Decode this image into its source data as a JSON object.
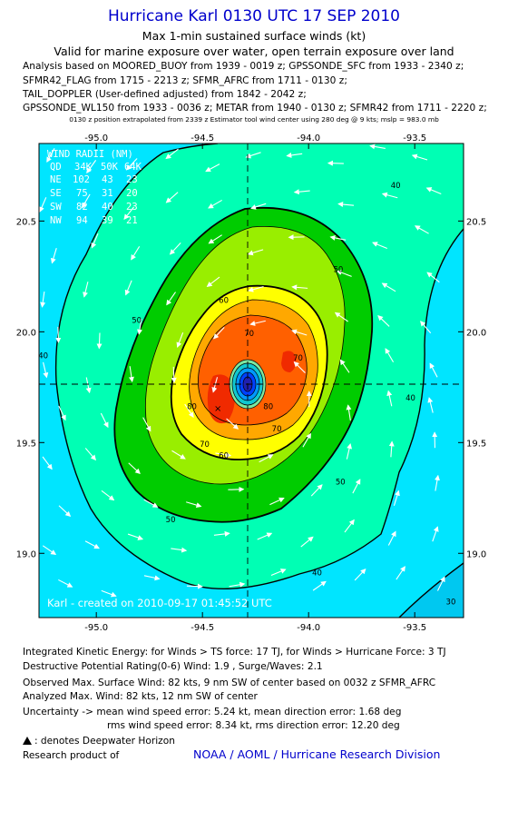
{
  "header": {
    "title": "Hurricane Karl 0130 UTC 17 SEP 2010",
    "subtitle": "Max 1-min sustained surface winds (kt)",
    "valid": "Valid for marine exposure over water, open terrain exposure over land"
  },
  "analysis_lines": [
    "Analysis based on MOORED_BUOY from 1939 - 0019 z; GPSSONDE_SFC from 1933 - 2340 z;",
    "SFMR42_FLAG from 1715 - 2213 z; SFMR_AFRC from 1711 - 0130 z;",
    "TAIL_DOPPLER (User-defined adjusted) from 1842 - 2042 z;",
    "GPSSONDE_WL150 from 1933 - 0036 z; METAR from 1940 - 0130 z; SFMR42 from 1711 - 2220 z;"
  ],
  "position_note": "0130 z position extrapolated from 2339 z Estimator tool wind center using 280 deg @ 9 kts; mslp = 983.0 mb",
  "map": {
    "lon_range": [
      -95.27,
      -93.27
    ],
    "lat_range": [
      18.71,
      20.85
    ],
    "lon_ticks": [
      {
        "v": -95.0,
        "t": "-95.0"
      },
      {
        "v": -94.5,
        "t": "-94.5"
      },
      {
        "v": -94.0,
        "t": "-94.0"
      },
      {
        "v": -93.5,
        "t": "-93.5"
      }
    ],
    "lat_ticks": [
      {
        "v": 20.5,
        "t": "20.5"
      },
      {
        "v": 20.0,
        "t": "20.0"
      },
      {
        "v": 19.5,
        "t": "19.5"
      },
      {
        "v": 19.0,
        "t": "19.0"
      }
    ],
    "center": {
      "lon": -94.25,
      "lat": 19.72
    },
    "contour_labels": [
      {
        "text": "40",
        "lon": -93.59,
        "lat": 20.65
      },
      {
        "text": "40",
        "lon": -95.25,
        "lat": 19.88
      },
      {
        "text": "40",
        "lon": -93.52,
        "lat": 19.69
      },
      {
        "text": "40",
        "lon": -93.96,
        "lat": 18.9
      },
      {
        "text": "30",
        "lon": -93.33,
        "lat": 18.77
      },
      {
        "text": "50",
        "lon": -94.81,
        "lat": 20.04
      },
      {
        "text": "50",
        "lon": -93.86,
        "lat": 20.27
      },
      {
        "text": "50",
        "lon": -93.85,
        "lat": 19.31
      },
      {
        "text": "50",
        "lon": -94.65,
        "lat": 19.14
      },
      {
        "text": "60",
        "lon": -94.4,
        "lat": 20.13
      },
      {
        "text": "60",
        "lon": -94.4,
        "lat": 19.43
      },
      {
        "text": "70",
        "lon": -94.28,
        "lat": 19.98
      },
      {
        "text": "70",
        "lon": -94.05,
        "lat": 19.87
      },
      {
        "text": "70",
        "lon": -94.49,
        "lat": 19.48
      },
      {
        "text": "70",
        "lon": -94.15,
        "lat": 19.55
      },
      {
        "text": "80",
        "lon": -94.55,
        "lat": 19.65
      },
      {
        "text": "80",
        "lon": -94.19,
        "lat": 19.65
      }
    ],
    "wind_radii": {
      "title": "WIND RADII (NM)",
      "header": [
        "QD",
        "34K",
        "50K",
        "64K"
      ],
      "rows": [
        [
          "NE",
          "102",
          "43",
          "23"
        ],
        [
          "SE",
          "75",
          "31",
          "20"
        ],
        [
          "SW",
          "82",
          "40",
          "23"
        ],
        [
          "NW",
          "94",
          "39",
          "21"
        ]
      ]
    },
    "credit": "Karl - created on 2010-09-17 01:45:52 UTC",
    "colors": {
      "cyan": "#00e5ff",
      "teal": "#00ffb4",
      "green": "#00cc00",
      "lime": "#99ee00",
      "yellow": "#ffff00",
      "orange": "#ffa800",
      "dorange": "#ff6000",
      "red": "#f02a00",
      "eye": "#0033ff"
    }
  },
  "footer": {
    "ike": "Integrated Kinetic Energy:  for Winds > TS force: 17 TJ,  for Winds > Hurricane Force: 3 TJ",
    "dpr": "Destructive Potential Rating(0-6)   Wind: 1.9 , Surge/Waves: 2.1",
    "observed": "Observed Max. Surface Wind: 82 kts, 9 nm SW of center based on 0032 z SFMR_AFRC",
    "analyzed": "Analyzed Max. Wind: 82 kts, 12 nm SW of center",
    "uncertainty_mean": "Uncertainty -> mean wind speed error: 5.24 kt,   mean direction error: 1.68 deg",
    "uncertainty_rms": "rms wind speed error: 8.34 kt,   rms direction error: 12.20 deg",
    "deepwater": ": denotes Deepwater Horizon",
    "research": "Research product of",
    "noaa": "NOAA / AOML / Hurricane Research Division"
  }
}
